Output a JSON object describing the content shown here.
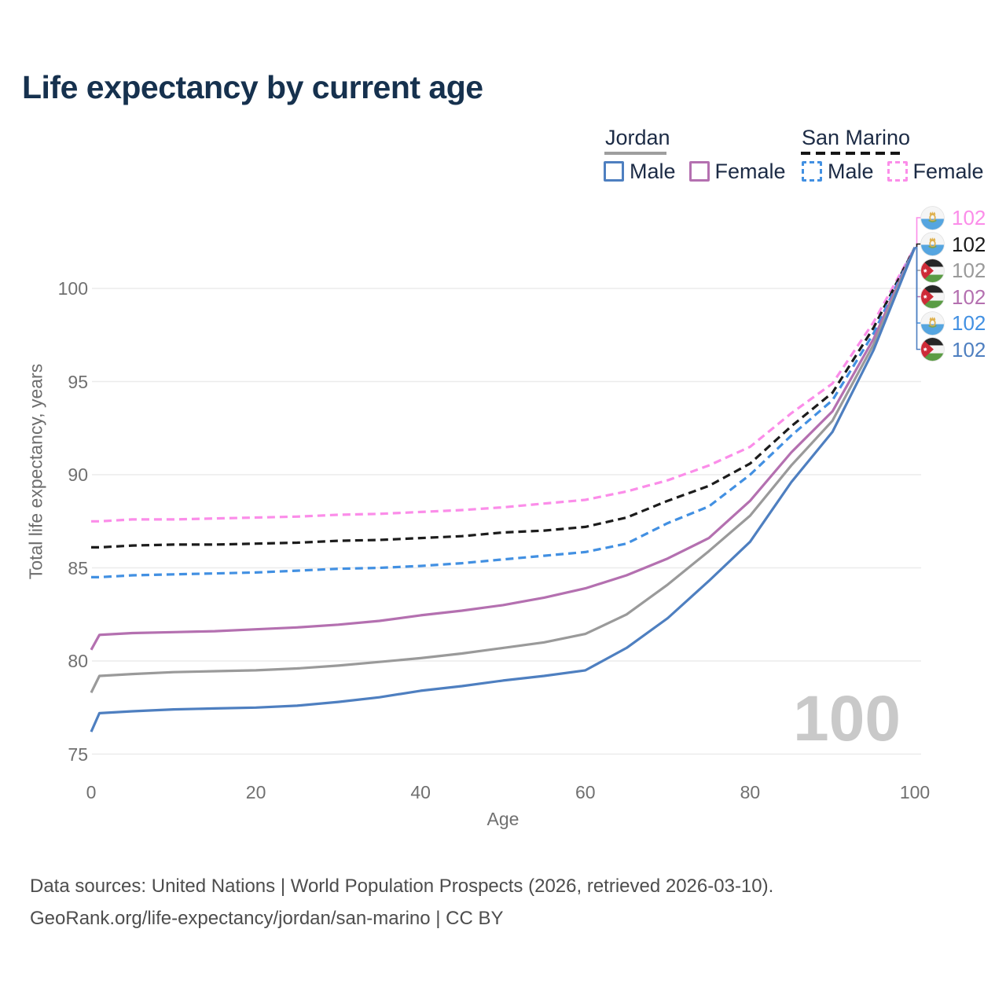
{
  "title": "Life expectancy by current age",
  "legend": {
    "groups": [
      {
        "label": "Jordan",
        "underline_color": "#9e9e9e",
        "underline_style": "solid",
        "items": [
          {
            "label": "Male",
            "color": "#4e7fc0",
            "style": "solid"
          },
          {
            "label": "Female",
            "color": "#b470b0",
            "style": "solid"
          }
        ]
      },
      {
        "label": "San Marino",
        "underline_color": "#151515",
        "underline_style": "dashed",
        "items": [
          {
            "label": "Male",
            "color": "#4290e2",
            "style": "dashed"
          },
          {
            "label": "Female",
            "color": "#fb8de9",
            "style": "dashed"
          }
        ]
      }
    ]
  },
  "chart_data": {
    "type": "line",
    "title": "Life expectancy by current age",
    "xlabel": "Age",
    "ylabel": "Total life expectancy, years",
    "xlim": [
      0,
      100
    ],
    "ylim": [
      75,
      102.5
    ],
    "x_ticks": [
      0,
      20,
      40,
      60,
      80,
      100
    ],
    "y_ticks": [
      75,
      80,
      85,
      90,
      95,
      100
    ],
    "grid": "horizontal-only",
    "gridline_color": "#ebebeb",
    "x": [
      0,
      1,
      5,
      10,
      15,
      20,
      25,
      30,
      35,
      40,
      45,
      50,
      55,
      60,
      65,
      70,
      75,
      80,
      85,
      90,
      95,
      100
    ],
    "series": [
      {
        "name": "San Marino Female",
        "country": "San Marino",
        "sex": "Female",
        "color": "#fb8de9",
        "dash": true,
        "values": [
          87.5,
          87.5,
          87.6,
          87.6,
          87.65,
          87.7,
          87.75,
          87.85,
          87.9,
          88.0,
          88.1,
          88.25,
          88.45,
          88.65,
          89.1,
          89.7,
          90.5,
          91.5,
          93.3,
          94.9,
          98.2,
          102.2
        ]
      },
      {
        "name": "San Marino Both sexes",
        "country": "San Marino",
        "sex": "Both",
        "color": "#1c1c1c",
        "dash": true,
        "values": [
          86.1,
          86.1,
          86.2,
          86.25,
          86.25,
          86.3,
          86.35,
          86.45,
          86.5,
          86.6,
          86.7,
          86.9,
          87.0,
          87.2,
          87.7,
          88.6,
          89.4,
          90.6,
          92.6,
          94.4,
          97.9,
          102.2
        ]
      },
      {
        "name": "San Marino Male",
        "country": "San Marino",
        "sex": "Male",
        "color": "#4290e2",
        "dash": true,
        "values": [
          84.5,
          84.5,
          84.6,
          84.65,
          84.7,
          84.75,
          84.85,
          84.95,
          85.0,
          85.1,
          85.25,
          85.45,
          85.65,
          85.85,
          86.3,
          87.4,
          88.3,
          90.0,
          92.1,
          94.0,
          97.6,
          102.2
        ]
      },
      {
        "name": "Jordan Female",
        "country": "Jordan",
        "sex": "Female",
        "color": "#b470b0",
        "dash": false,
        "values": [
          80.6,
          81.4,
          81.5,
          81.55,
          81.6,
          81.7,
          81.8,
          81.95,
          82.15,
          82.45,
          82.7,
          83.0,
          83.4,
          83.9,
          84.6,
          85.5,
          86.6,
          88.6,
          91.2,
          93.4,
          97.3,
          102.2
        ]
      },
      {
        "name": "Jordan Both sexes",
        "country": "Jordan",
        "sex": "Both",
        "color": "#9a9a9a",
        "dash": false,
        "values": [
          78.3,
          79.2,
          79.3,
          79.4,
          79.45,
          79.5,
          79.6,
          79.75,
          79.95,
          80.15,
          80.4,
          80.7,
          81.0,
          81.45,
          82.5,
          84.1,
          85.9,
          87.8,
          90.5,
          92.9,
          97.0,
          102.2
        ]
      },
      {
        "name": "Jordan Male",
        "country": "Jordan",
        "sex": "Male",
        "color": "#4e7fc0",
        "dash": false,
        "values": [
          76.2,
          77.2,
          77.3,
          77.4,
          77.45,
          77.5,
          77.6,
          77.8,
          78.05,
          78.4,
          78.65,
          78.95,
          79.2,
          79.5,
          80.7,
          82.3,
          84.3,
          86.4,
          89.6,
          92.3,
          96.7,
          102.2
        ]
      }
    ],
    "end_labels": [
      {
        "value": "102",
        "color": "#fb8de9",
        "flag": "san-marino",
        "series": "San Marino Female"
      },
      {
        "value": "102",
        "color": "#1a1a1a",
        "flag": "san-marino",
        "series": "San Marino Both sexes"
      },
      {
        "value": "102",
        "color": "#9a9a9a",
        "flag": "jordan",
        "series": "Jordan Both sexes"
      },
      {
        "value": "102",
        "color": "#b470b0",
        "flag": "jordan",
        "series": "Jordan Female"
      },
      {
        "value": "102",
        "color": "#4290e2",
        "flag": "san-marino",
        "series": "San Marino Male"
      },
      {
        "value": "102",
        "color": "#4e7fc0",
        "flag": "jordan",
        "series": "Jordan Male"
      }
    ],
    "age_cursor_label": "100",
    "end_value": 102.2
  },
  "footer": {
    "line1": "Data sources: United Nations | World Population Prospects (2026, retrieved 2026-03-10).",
    "line2": "GeoRank.org/life-expectancy/jordan/san-marino | CC BY"
  }
}
